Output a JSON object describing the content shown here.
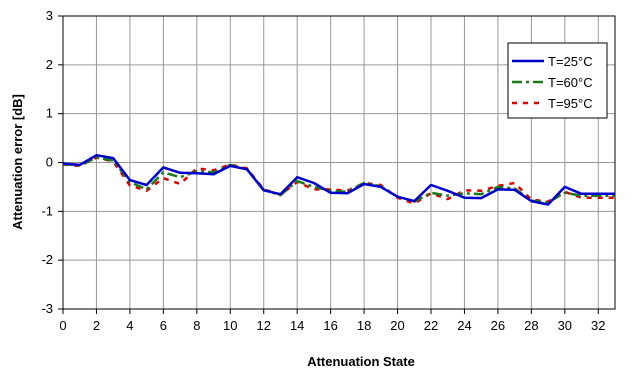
{
  "chart_data": {
    "type": "line",
    "xlabel": "Attenuation State",
    "ylabel": "Attenuation error [dB]",
    "xlim": [
      0,
      33
    ],
    "ylim": [
      -3,
      3
    ],
    "x_ticks": [
      0,
      2,
      4,
      6,
      8,
      10,
      12,
      14,
      16,
      18,
      20,
      22,
      24,
      26,
      28,
      30,
      32
    ],
    "y_ticks": [
      3,
      2,
      1,
      0,
      -1,
      -2,
      -3
    ],
    "grid": true,
    "legend_position": "top-right",
    "x": [
      0,
      1,
      2,
      3,
      4,
      5,
      6,
      7,
      8,
      9,
      10,
      11,
      12,
      13,
      14,
      15,
      16,
      17,
      18,
      19,
      20,
      21,
      22,
      23,
      24,
      25,
      26,
      27,
      28,
      29,
      30,
      31,
      32,
      33
    ],
    "series": [
      {
        "name": "T=25°C",
        "color": "#0000cc",
        "dash": "solid",
        "values": [
          -0.02,
          -0.05,
          0.15,
          0.09,
          -0.36,
          -0.46,
          -0.1,
          -0.21,
          -0.22,
          -0.24,
          -0.07,
          -0.14,
          -0.57,
          -0.65,
          -0.3,
          -0.42,
          -0.62,
          -0.63,
          -0.44,
          -0.5,
          -0.7,
          -0.79,
          -0.46,
          -0.58,
          -0.72,
          -0.73,
          -0.55,
          -0.56,
          -0.79,
          -0.86,
          -0.5,
          -0.64,
          -0.64,
          -0.64
        ]
      },
      {
        "name": "T=60°C",
        "color": "#1a7a1a",
        "dash": "dashdot",
        "values": [
          -0.03,
          -0.06,
          0.1,
          0.04,
          -0.4,
          -0.55,
          -0.2,
          -0.3,
          -0.18,
          -0.2,
          -0.05,
          -0.14,
          -0.56,
          -0.67,
          -0.38,
          -0.5,
          -0.58,
          -0.6,
          -0.42,
          -0.49,
          -0.7,
          -0.8,
          -0.62,
          -0.68,
          -0.63,
          -0.65,
          -0.5,
          -0.53,
          -0.78,
          -0.82,
          -0.62,
          -0.68,
          -0.68,
          -0.68
        ]
      },
      {
        "name": "T=95°C",
        "color": "#dd0000",
        "dash": "dotted",
        "values": [
          -0.04,
          -0.07,
          0.1,
          0.02,
          -0.47,
          -0.58,
          -0.32,
          -0.44,
          -0.12,
          -0.16,
          -0.04,
          -0.12,
          -0.55,
          -0.66,
          -0.4,
          -0.55,
          -0.55,
          -0.58,
          -0.42,
          -0.46,
          -0.72,
          -0.84,
          -0.63,
          -0.75,
          -0.57,
          -0.58,
          -0.48,
          -0.42,
          -0.76,
          -0.8,
          -0.6,
          -0.72,
          -0.72,
          -0.72
        ]
      }
    ]
  }
}
